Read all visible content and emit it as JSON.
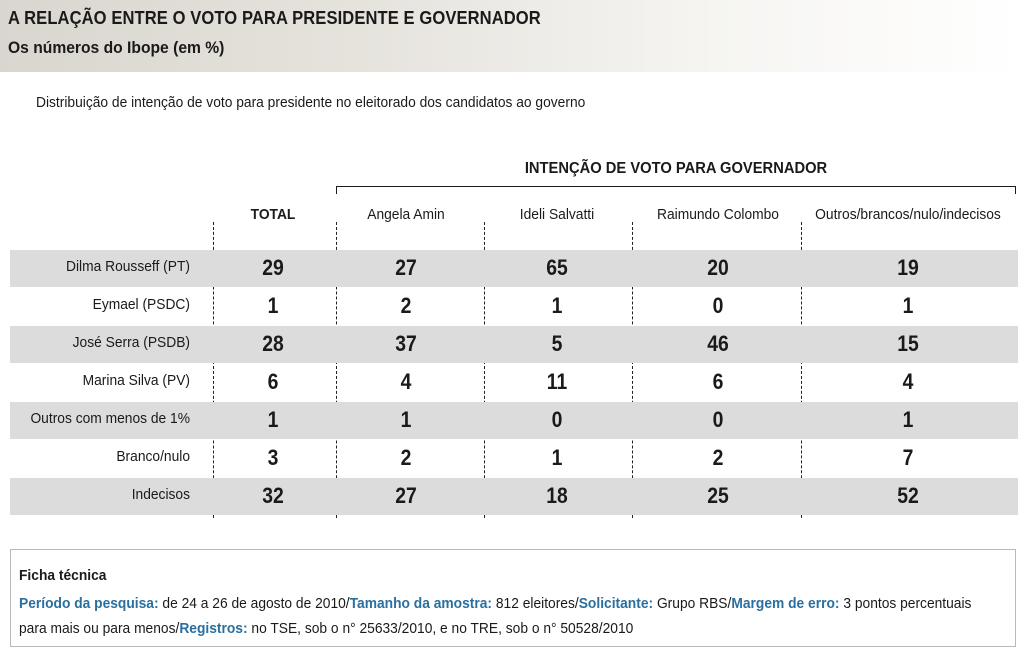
{
  "header": {
    "title": "A RELAÇÃO ENTRE O VOTO PARA PRESIDENTE E GOVERNADOR",
    "subtitle": "Os números do Ibope (em %)"
  },
  "description": "Distribuição de intenção de voto para presidente no eleitorado dos candidatos ao governo",
  "group_header": "INTENÇÃO DE VOTO PARA GOVERNADOR",
  "colors": {
    "row_shade": "#dddcdc",
    "header_band": "#e6e3dd",
    "ficha_key": "#2a6f9e"
  },
  "chart_data": {
    "type": "table",
    "title": "A RELAÇÃO ENTRE O VOTO PARA PRESIDENTE E GOVERNADOR",
    "subtitle": "Os números do Ibope (em %)",
    "columns": [
      "TOTAL",
      "Angela Amin",
      "Ideli Salvatti",
      "Raimundo Colombo",
      "Outros/brancos/nulo/indecisos"
    ],
    "rows": [
      {
        "label": "Dilma Rousseff (PT)",
        "values": [
          29,
          27,
          65,
          20,
          19
        ],
        "shaded": true
      },
      {
        "label": "Eymael (PSDC)",
        "values": [
          1,
          2,
          1,
          0,
          1
        ],
        "shaded": false
      },
      {
        "label": "José Serra (PSDB)",
        "values": [
          28,
          37,
          5,
          46,
          15
        ],
        "shaded": true
      },
      {
        "label": "Marina Silva (PV)",
        "values": [
          6,
          4,
          11,
          6,
          4
        ],
        "shaded": false
      },
      {
        "label": "Outros com menos de 1%",
        "values": [
          1,
          1,
          0,
          0,
          1
        ],
        "shaded": true
      },
      {
        "label": "Branco/nulo",
        "values": [
          3,
          2,
          1,
          2,
          7
        ],
        "shaded": false
      },
      {
        "label": "Indecisos",
        "values": [
          32,
          27,
          18,
          25,
          52
        ],
        "shaded": true
      }
    ]
  },
  "ficha": {
    "title": "Ficha técnica",
    "periodo_label": "Período da pesquisa:",
    "periodo_value": " de 24 a 26 de agosto de 2010/",
    "amostra_label": "Tamanho da amostra:",
    "amostra_value": " 812 eleitores/",
    "solicitante_label": "Solicitante:",
    "solicitante_value": " Grupo RBS/",
    "margem_label": "Margem de erro:",
    "margem_value": " 3 pontos percentuais para mais ou para menos/",
    "registros_label": "Registros:",
    "registros_value": " no TSE, sob o n° 25633/2010, e no TRE, sob o n° 50528/2010"
  }
}
